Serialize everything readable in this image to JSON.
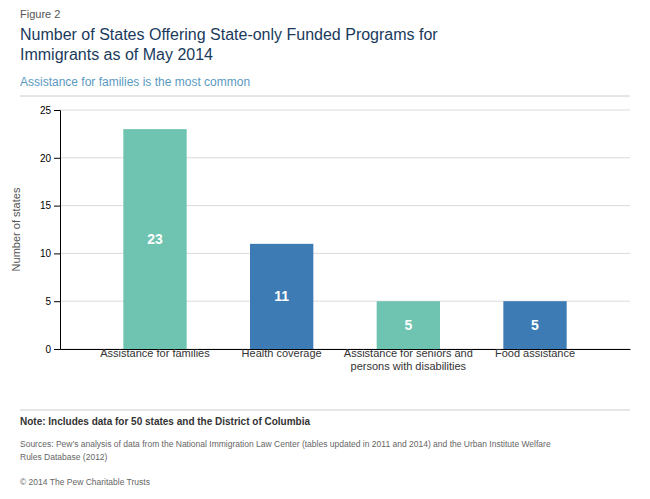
{
  "chart_data": {
    "type": "bar",
    "figure_label": "Figure 2",
    "title": "Number of States Offering State-only Funded Programs for\nImmigrants as of May 2014",
    "subtitle": "Assistance for families is the most common",
    "categories": [
      "Assistance for families",
      "Health coverage",
      "Assistance for seniors and\npersons with disabilities",
      "Food assistance"
    ],
    "values": [
      23,
      11,
      5,
      5
    ],
    "colors": [
      "#6ec4b0",
      "#3d7bb5",
      "#6ec4b0",
      "#3d7bb5"
    ],
    "ylabel": "Number of states",
    "ylim": [
      0,
      25
    ],
    "yticks": [
      0,
      5,
      10,
      15,
      20,
      25
    ],
    "grid": true,
    "data_labels": true,
    "note": "Note: Includes data for 50 states and the District of Columbia",
    "source": "Sources: Pew’s analysis of data from the National Immigration Law Center (tables updated in 2011 and 2014) and the Urban Institute Welfare\nRules Database (2012)",
    "copyright": "© 2014 The Pew Charitable Trusts"
  }
}
